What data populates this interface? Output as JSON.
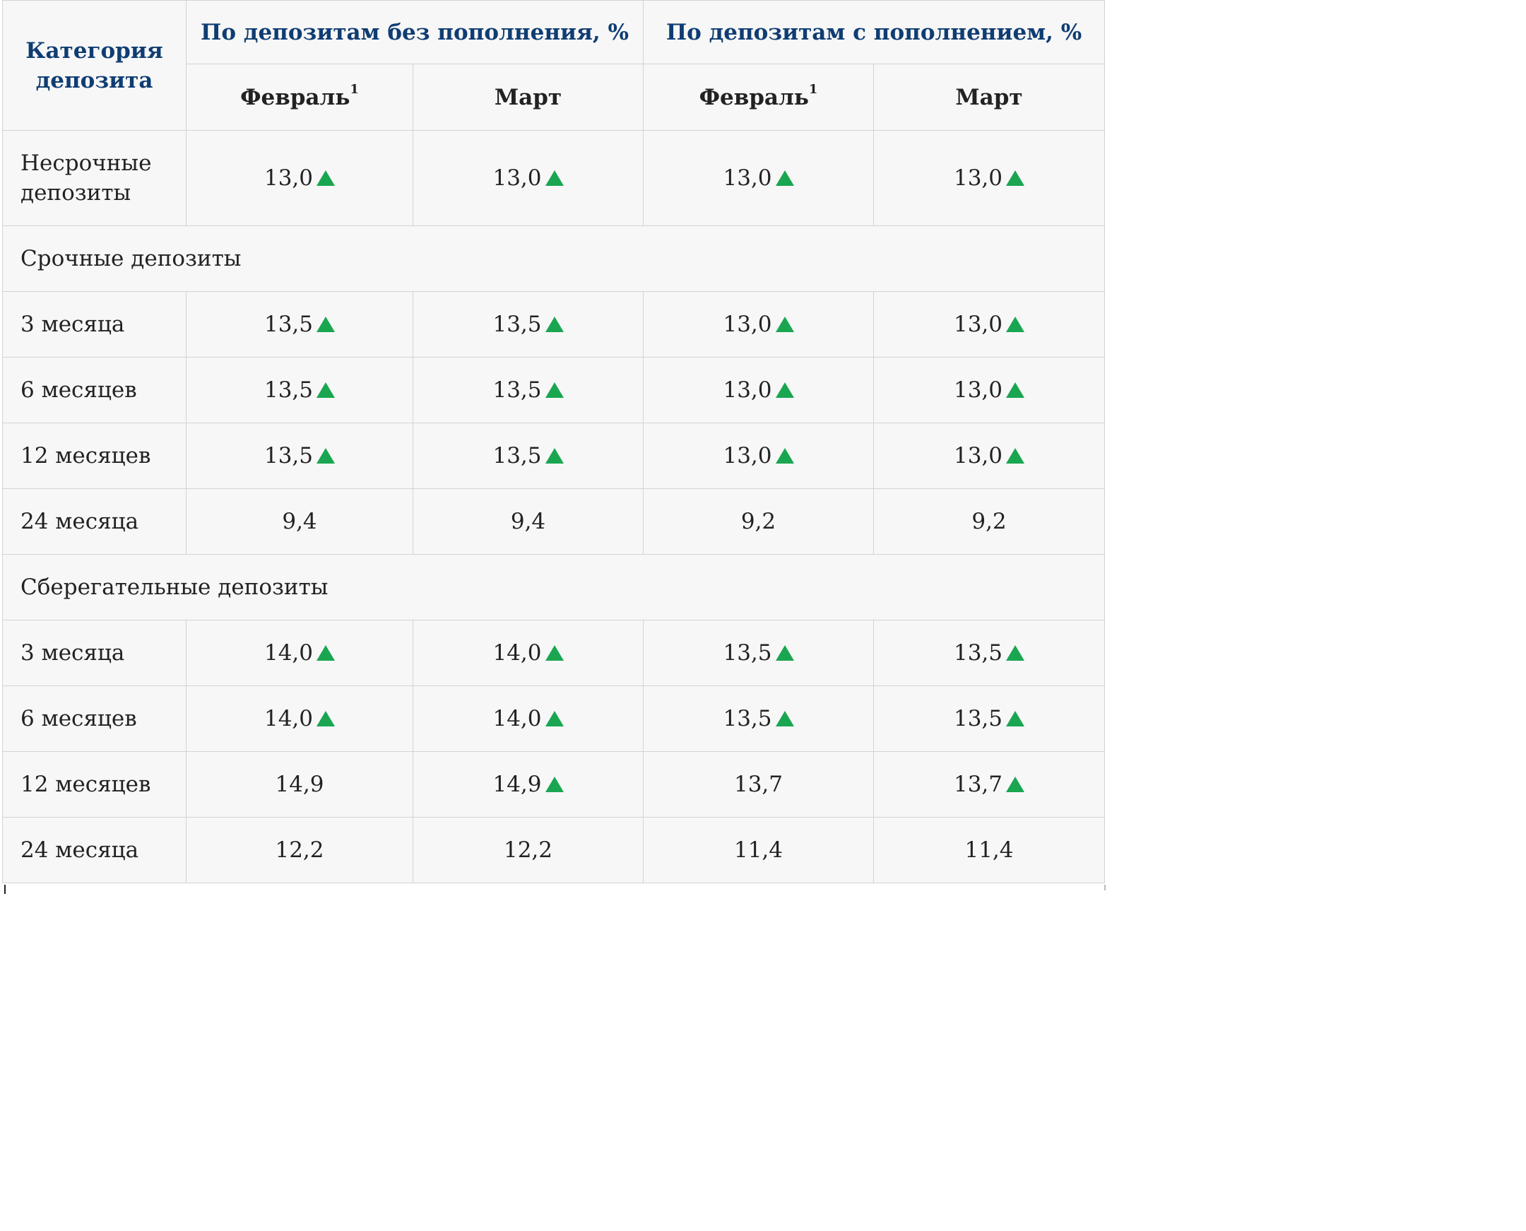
{
  "header": {
    "category": "Категория депозита",
    "group_without": "По депозитам без пополнения, %",
    "group_with": "По депозитам с пополнением, %",
    "feb": "Февраль",
    "feb_note": "1",
    "mar": "Март"
  },
  "rows": [
    {
      "label": "Несрочные депозиты",
      "cells": [
        {
          "value": "13,0",
          "up": true
        },
        {
          "value": "13,0",
          "up": true
        },
        {
          "value": "13,0",
          "up": true
        },
        {
          "value": "13,0",
          "up": true
        }
      ]
    },
    {
      "section": "Срочные депозиты"
    },
    {
      "label": "3 месяца",
      "cells": [
        {
          "value": "13,5",
          "up": true
        },
        {
          "value": "13,5",
          "up": true
        },
        {
          "value": "13,0",
          "up": true
        },
        {
          "value": "13,0",
          "up": true
        }
      ]
    },
    {
      "label": "6 месяцев",
      "cells": [
        {
          "value": "13,5",
          "up": true
        },
        {
          "value": "13,5",
          "up": true
        },
        {
          "value": "13,0",
          "up": true
        },
        {
          "value": "13,0",
          "up": true
        }
      ]
    },
    {
      "label": "12 месяцев",
      "cells": [
        {
          "value": "13,5",
          "up": true
        },
        {
          "value": "13,5",
          "up": true
        },
        {
          "value": "13,0",
          "up": true
        },
        {
          "value": "13,0",
          "up": true
        }
      ]
    },
    {
      "label": "24 месяца",
      "cells": [
        {
          "value": "9,4",
          "up": false
        },
        {
          "value": "9,4",
          "up": false
        },
        {
          "value": "9,2",
          "up": false
        },
        {
          "value": "9,2",
          "up": false
        }
      ]
    },
    {
      "section": "Сберегательные депозиты"
    },
    {
      "label": "3 месяца",
      "cells": [
        {
          "value": "14,0",
          "up": true
        },
        {
          "value": "14,0",
          "up": true
        },
        {
          "value": "13,5",
          "up": true
        },
        {
          "value": "13,5",
          "up": true
        }
      ]
    },
    {
      "label": "6 месяцев",
      "cells": [
        {
          "value": "14,0",
          "up": true
        },
        {
          "value": "14,0",
          "up": true
        },
        {
          "value": "13,5",
          "up": true
        },
        {
          "value": "13,5",
          "up": true
        }
      ]
    },
    {
      "label": "12 месяцев",
      "cells": [
        {
          "value": "14,9",
          "up": false
        },
        {
          "value": "14,9",
          "up": true
        },
        {
          "value": "13,7",
          "up": false
        },
        {
          "value": "13,7",
          "up": true
        }
      ]
    },
    {
      "label": "24 месяца",
      "cells": [
        {
          "value": "12,2",
          "up": false
        },
        {
          "value": "12,2",
          "up": false
        },
        {
          "value": "11,4",
          "up": false
        },
        {
          "value": "11,4",
          "up": false
        }
      ]
    }
  ],
  "colors": {
    "header_text": "#0f3d73",
    "up_arrow": "#1aa651",
    "border": "#d3d3d3",
    "background": "#f7f7f7"
  },
  "icons": {
    "up": "triangle-up-icon"
  }
}
